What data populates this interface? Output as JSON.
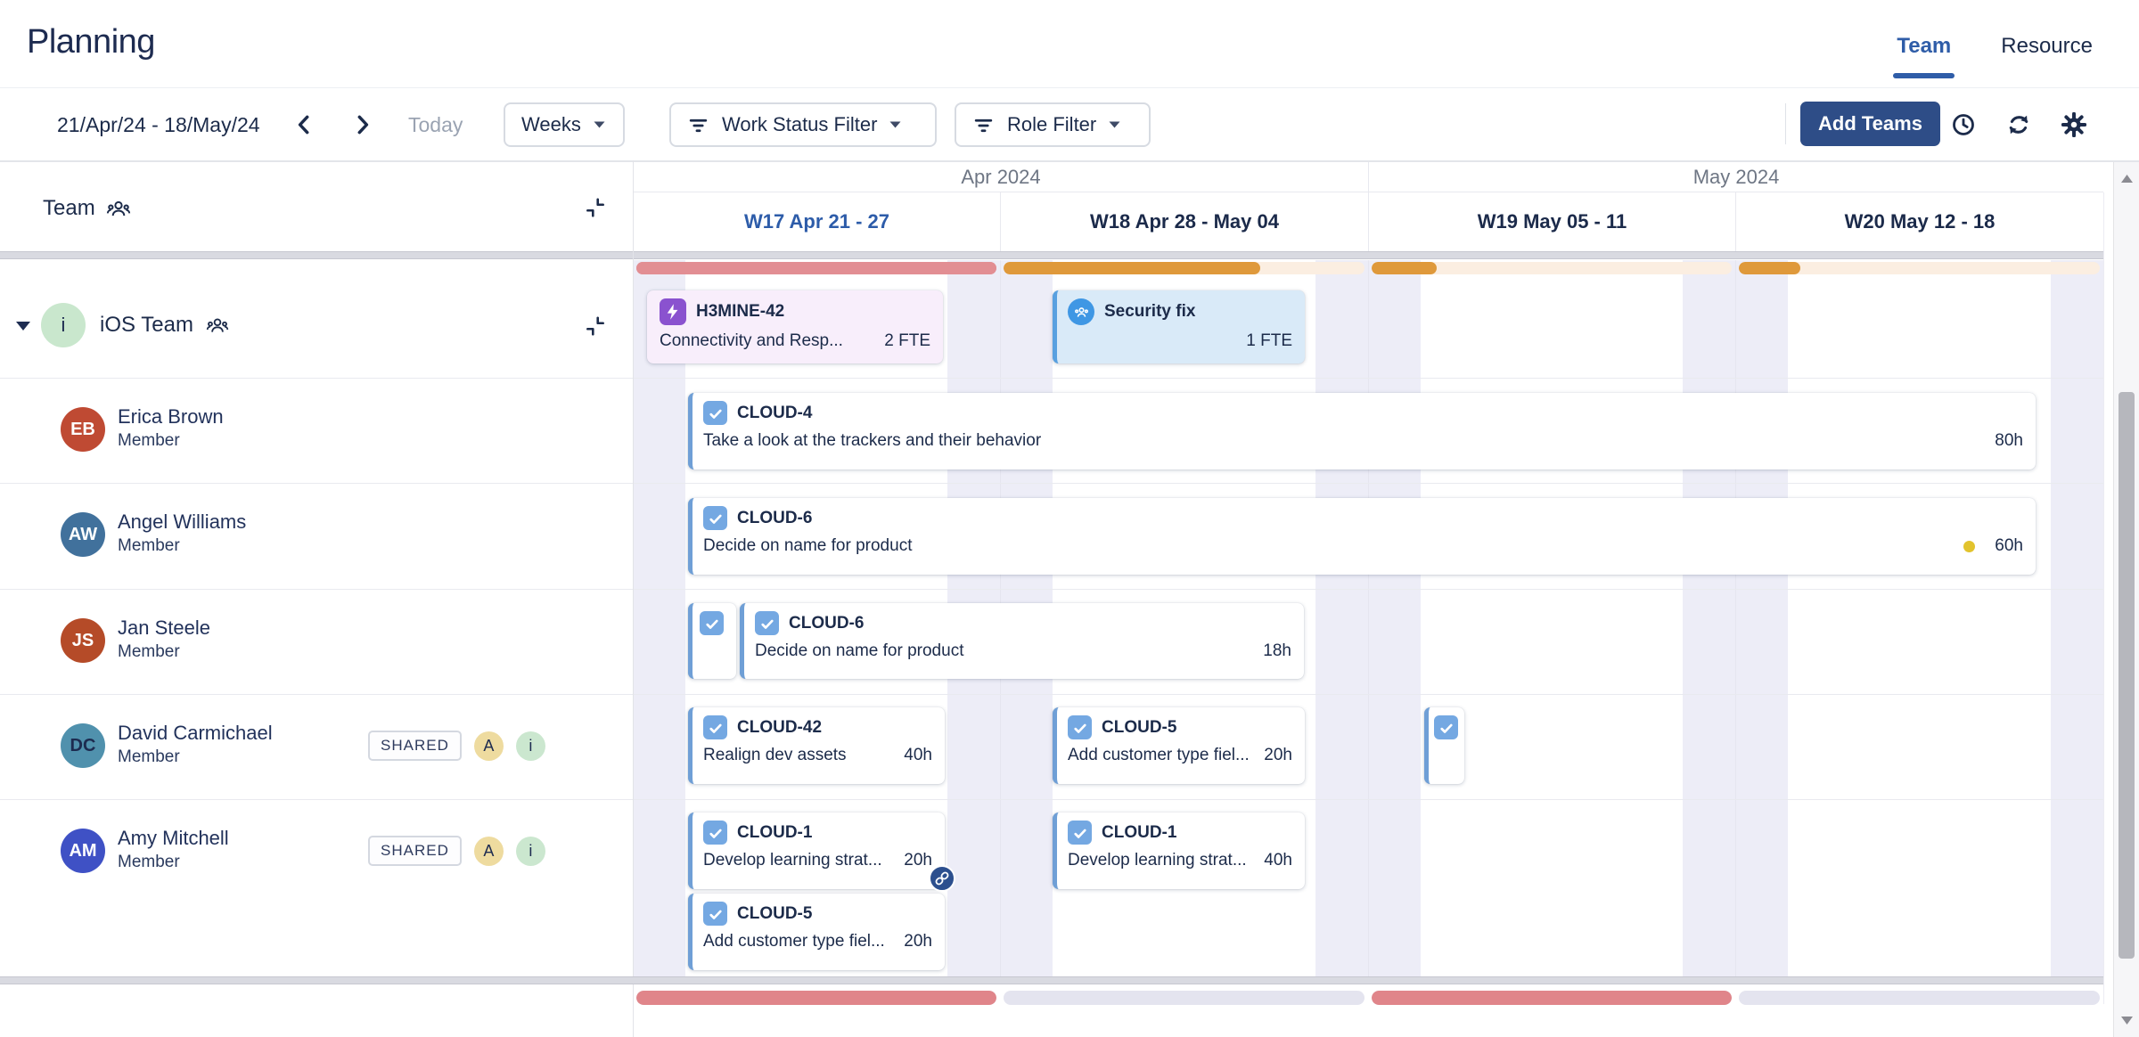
{
  "header": {
    "title": "Planning",
    "tabs": [
      {
        "label": "Team",
        "active": true
      },
      {
        "label": "Resource",
        "active": false
      }
    ]
  },
  "toolbar": {
    "date_range": "21/Apr/24 - 18/May/24",
    "today": "Today",
    "zoom": "Weeks",
    "filters": [
      "Work Status Filter",
      "Role Filter"
    ],
    "add_teams": "Add Teams",
    "icons": [
      "chevron-left-icon",
      "chevron-right-icon",
      "clock-icon",
      "refresh-icon",
      "gear-icon",
      "funnel-icon",
      "caret-down-icon"
    ]
  },
  "timeline": {
    "months": [
      "Apr 2024",
      "May 2024"
    ],
    "weeks": [
      {
        "label": "W17 Apr 21 - 27",
        "current": true
      },
      {
        "label": "W18 Apr 28 - May 04",
        "current": false
      },
      {
        "label": "W19 May 05 - 11",
        "current": false
      },
      {
        "label": "W20 May 12 - 18",
        "current": false
      }
    ],
    "capacity_top": [
      {
        "week": "W17",
        "fill_pct": 100,
        "fill_color": "#e28e93",
        "track_color": "#e28e93"
      },
      {
        "week": "W18",
        "fill_pct": 71,
        "fill_color": "#df993b",
        "track_color": "#fbeee1"
      },
      {
        "week": "W19",
        "fill_pct": 18,
        "fill_color": "#df993b",
        "track_color": "#fbeee1"
      },
      {
        "week": "W20",
        "fill_pct": 17,
        "fill_color": "#df993b",
        "track_color": "#fbeee1"
      }
    ],
    "capacity_bottom": [
      {
        "week": "W17",
        "fill_pct": 100,
        "fill_color": "#e0858a",
        "track_color": "#e4e4ef"
      },
      {
        "week": "W18",
        "fill_pct": 0,
        "fill_color": "#e0858a",
        "track_color": "#e4e4ef"
      },
      {
        "week": "W19",
        "fill_pct": 100,
        "fill_color": "#e0858a",
        "track_color": "#e4e4ef"
      },
      {
        "week": "W20",
        "fill_pct": 0,
        "fill_color": "#e0858a",
        "track_color": "#e4e4ef"
      }
    ]
  },
  "panel": {
    "header_label": "Team",
    "team": {
      "name": "iOS Team",
      "avatar_text": "i",
      "avatar_color": "#c9e7cd"
    },
    "members": [
      {
        "initials": "EB",
        "name": "Erica Brown",
        "role": "Member",
        "avatar_color": "#bf4a33",
        "initials_color": "#ffffff"
      },
      {
        "initials": "AW",
        "name": "Angel Williams",
        "role": "Member",
        "avatar_color": "#41719c",
        "initials_color": "#ffffff"
      },
      {
        "initials": "JS",
        "name": "Jan Steele",
        "role": "Member",
        "avatar_color": "#b54b28",
        "initials_color": "#ffffff"
      },
      {
        "initials": "DC",
        "name": "David Carmichael",
        "role": "Member",
        "avatar_color": "#5091ad",
        "initials_color": "#1d2b50",
        "badge": "SHARED",
        "tags": [
          {
            "label": "A",
            "color": "#eedb9f"
          },
          {
            "label": "i",
            "color": "#cbe7cf"
          }
        ]
      },
      {
        "initials": "AM",
        "name": "Amy Mitchell",
        "role": "Member",
        "avatar_color": "#3f51c5",
        "initials_color": "#ffffff",
        "badge": "SHARED",
        "tags": [
          {
            "label": "A",
            "color": "#eedb9f"
          },
          {
            "label": "i",
            "color": "#cbe7cf"
          }
        ]
      }
    ]
  },
  "cards": {
    "epic": {
      "key": "H3MINE-42",
      "summary": "Connectivity and Resp...",
      "effort": "2 FTE"
    },
    "security": {
      "title": "Security fix",
      "effort": "1 FTE"
    },
    "erica": {
      "key": "CLOUD-4",
      "summary": "Take a look at the trackers and their behavior",
      "hours": "80h"
    },
    "angel": {
      "key": "CLOUD-6",
      "summary": "Decide on name for product",
      "hours": "60h"
    },
    "jan": {
      "key": "CLOUD-6",
      "summary": "Decide on name for product",
      "hours": "18h"
    },
    "david_a": {
      "key": "CLOUD-42",
      "summary": "Realign dev assets",
      "hours": "40h"
    },
    "david_b": {
      "key": "CLOUD-5",
      "summary": "Add customer type fiel...",
      "hours": "20h"
    },
    "amy_a": {
      "key": "CLOUD-1",
      "summary": "Develop learning strat...",
      "hours": "20h"
    },
    "amy_b": {
      "key": "CLOUD-1",
      "summary": "Develop learning strat...",
      "hours": "40h"
    },
    "amy_c": {
      "key": "CLOUD-5",
      "summary": "Add customer type fiel...",
      "hours": "20h"
    }
  },
  "colors": {
    "accent_blue": "#2f5da8",
    "button_blue": "#2e4d87",
    "card_border": "#6f9fd6",
    "checkbox_blue": "#74a8e2",
    "weekend_stripe": "#ededf7",
    "epic_bg": "#f8eefb",
    "epic_icon": "#8a52cf",
    "security_bg": "#d9eaf8",
    "security_icon": "#3f97e4",
    "overload_red": "#e28e93",
    "load_orange": "#df993b",
    "dot_yellow": "#e2c32d",
    "link_badge": "#2c4f8e"
  }
}
